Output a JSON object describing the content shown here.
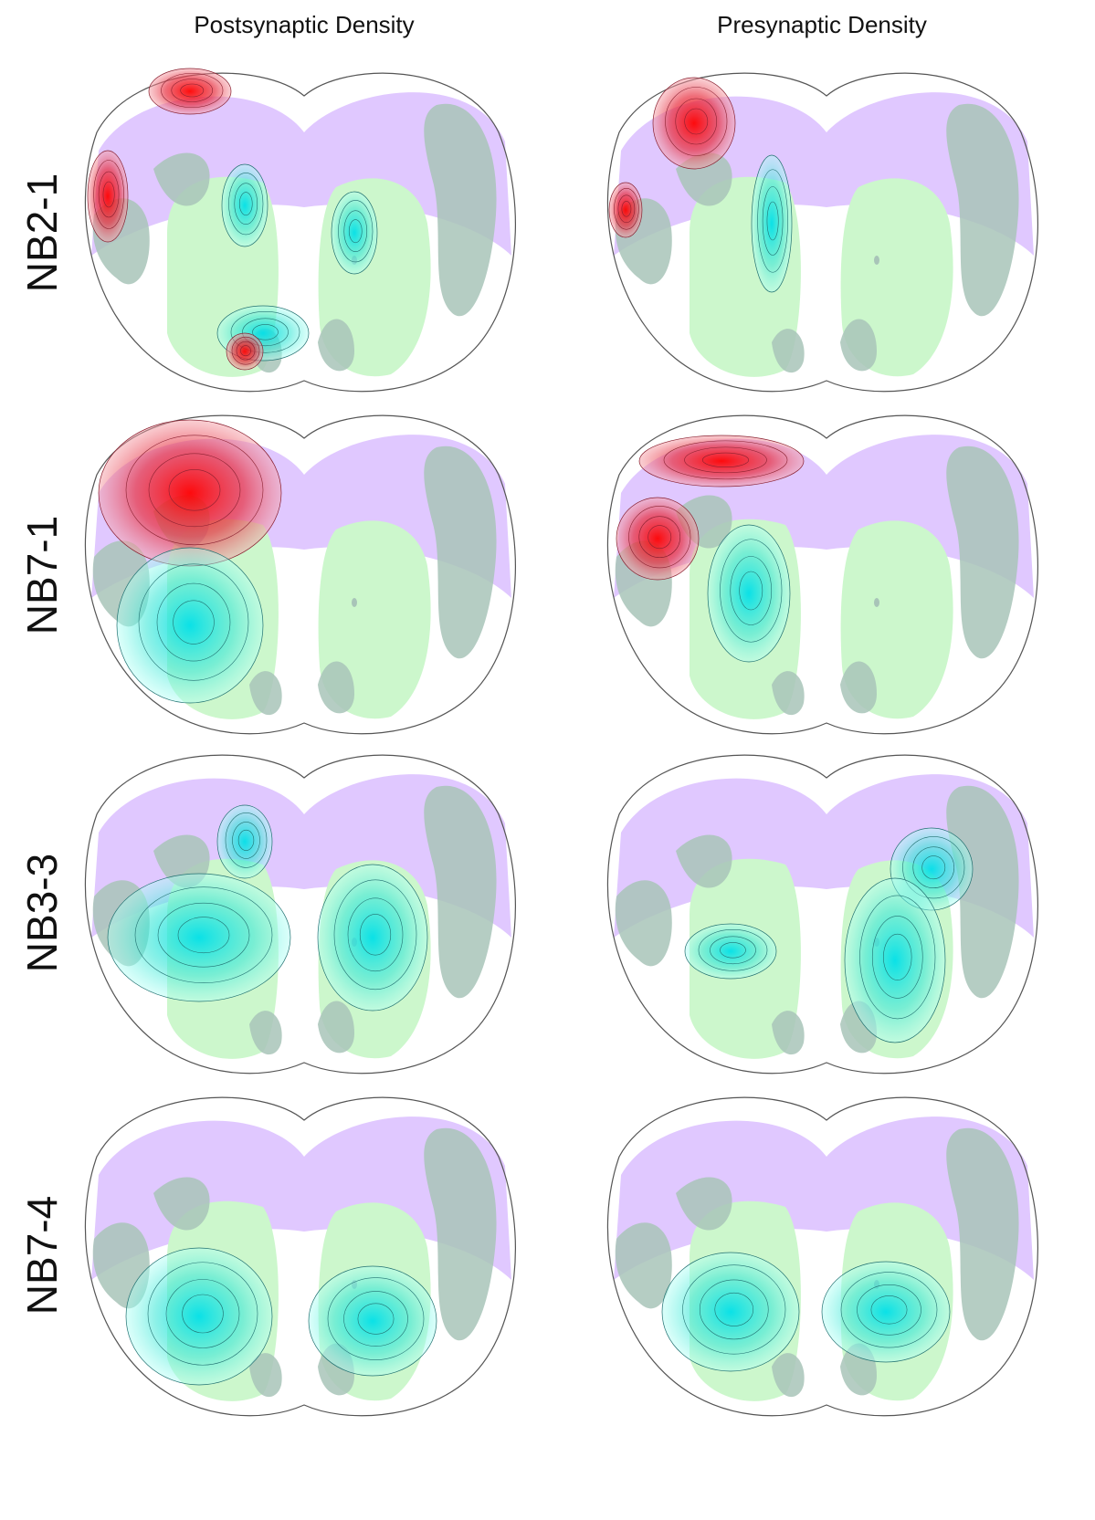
{
  "column_titles": [
    "Postsynaptic Density",
    "Presynaptic Density"
  ],
  "row_labels": [
    "NB2-1",
    "NB7-1",
    "NB3-3",
    "NB7-4"
  ]
}
